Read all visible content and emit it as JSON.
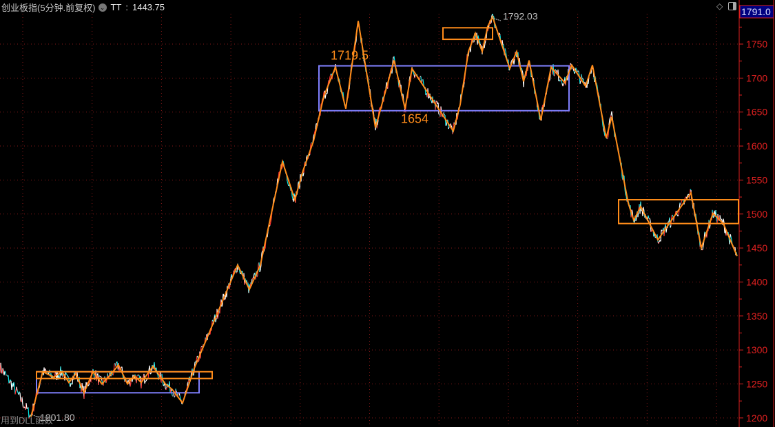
{
  "header": {
    "title": "创业板指(5分钟.前复权)",
    "indicator_icon": "chevron-down-circle-icon",
    "indicator_label": "TT",
    "indicator_value": "1443.75"
  },
  "footer_text": "用到DLL函数",
  "toolbar_icons": [
    "diamond-icon",
    "panel-toggle-icon"
  ],
  "colors": {
    "background": "#000000",
    "axis": "#e02020",
    "grid": "#8b1a1a",
    "zigzag": "#ff8c1a",
    "box_purple": "#8080ff",
    "box_orange": "#ff8c1a",
    "price_up": "#ffffff",
    "price_alt": "#00e5e5",
    "price_down": "#ff3030",
    "current_price_bg": "#000080"
  },
  "chart_data": {
    "type": "line",
    "title": "创业板指(5分钟.前复权)",
    "ylim": [
      1190,
      1810
    ],
    "y_ticks": [
      "1200",
      "1250",
      "1300",
      "1350",
      "1400",
      "1450",
      "1500",
      "1550",
      "1600",
      "1650",
      "1700",
      "1750"
    ],
    "grid": true,
    "current_price": "1791.0",
    "zigzag": [
      [
        45,
        1202
      ],
      [
        62,
        1268
      ],
      [
        78,
        1260
      ],
      [
        90,
        1268
      ],
      [
        100,
        1252
      ],
      [
        110,
        1265
      ],
      [
        122,
        1237
      ],
      [
        135,
        1268
      ],
      [
        148,
        1250
      ],
      [
        160,
        1263
      ],
      [
        172,
        1278
      ],
      [
        185,
        1250
      ],
      [
        195,
        1262
      ],
      [
        205,
        1252
      ],
      [
        222,
        1276
      ],
      [
        240,
        1250
      ],
      [
        250,
        1242
      ],
      [
        265,
        1222
      ],
      [
        282,
        1273
      ],
      [
        345,
        1425
      ],
      [
        362,
        1389
      ],
      [
        378,
        1425
      ],
      [
        410,
        1577
      ],
      [
        428,
        1521
      ],
      [
        440,
        1564
      ],
      [
        455,
        1607
      ],
      [
        470,
        1673
      ],
      [
        487,
        1716
      ],
      [
        502,
        1655
      ],
      [
        520,
        1784
      ],
      [
        545,
        1627
      ],
      [
        572,
        1726
      ],
      [
        588,
        1655
      ],
      [
        598,
        1714
      ],
      [
        658,
        1622
      ],
      [
        668,
        1661
      ],
      [
        680,
        1739
      ],
      [
        690,
        1766
      ],
      [
        700,
        1739
      ],
      [
        708,
        1776
      ],
      [
        715,
        1790
      ],
      [
        740,
        1714
      ],
      [
        750,
        1739
      ],
      [
        760,
        1695
      ],
      [
        768,
        1726
      ],
      [
        785,
        1638
      ],
      [
        800,
        1716
      ],
      [
        820,
        1693
      ],
      [
        830,
        1719
      ],
      [
        850,
        1688
      ],
      [
        860,
        1719
      ],
      [
        880,
        1612
      ],
      [
        888,
        1643
      ],
      [
        912,
        1516
      ],
      [
        920,
        1491
      ],
      [
        930,
        1511
      ],
      [
        955,
        1462
      ],
      [
        990,
        1513
      ],
      [
        1003,
        1531
      ],
      [
        1018,
        1450
      ],
      [
        1035,
        1501
      ],
      [
        1050,
        1486
      ],
      [
        1070,
        1438
      ]
    ],
    "price_start": [
      [
        0,
        1275
      ],
      [
        20,
        1245
      ],
      [
        45,
        1202
      ]
    ],
    "boxes": [
      {
        "color": "purple",
        "x": [
          53,
          289
        ],
        "price": [
          1237,
          1268
        ]
      },
      {
        "color": "orange",
        "x": [
          53,
          308
        ],
        "price": [
          1258,
          1268
        ]
      },
      {
        "color": "purple",
        "x": [
          463,
          826
        ],
        "price": [
          1652,
          1718
        ]
      },
      {
        "color": "orange",
        "x": [
          643,
          715
        ],
        "price": [
          1757,
          1774
        ]
      },
      {
        "color": "orange",
        "x": [
          898,
          1072
        ],
        "price": [
          1486,
          1521
        ]
      }
    ],
    "annotations": [
      {
        "text": "1719.5",
        "x": 480,
        "price": 1727,
        "color": "orange"
      },
      {
        "text": "1654",
        "x": 582,
        "price": 1634,
        "color": "orange"
      },
      {
        "text": "1792.03",
        "x": 730,
        "price": 1792,
        "color": "grey"
      },
      {
        "text": "1201.80",
        "x": 58,
        "price": 1201.8,
        "color": "grey"
      }
    ]
  }
}
